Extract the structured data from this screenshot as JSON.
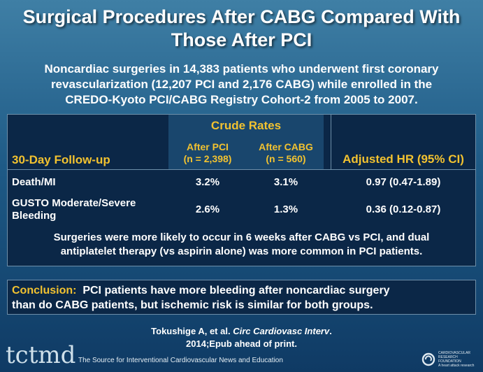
{
  "title": {
    "line1": "Surgical Procedures After CABG Compared With",
    "line2": "Those After PCI"
  },
  "subtitle": {
    "line1": "Noncardiac surgeries in 14,383 patients who underwent first coronary",
    "line2": "revascularization (12,207 PCI and 2,176 CABG) while enrolled in the",
    "line3": "CREDO-Kyoto PCI/CABG Registry Cohort-2 from 2005 to 2007."
  },
  "table": {
    "crude_rates": "Crude Rates",
    "row_header": "30-Day Follow-up",
    "after_pci": {
      "line1": "After PCI",
      "line2": "(n = 2,398)"
    },
    "after_cabg": {
      "line1": "After CABG",
      "line2": "(n = 560)"
    },
    "adjusted_hr": "Adjusted HR (95% CI)",
    "rows": [
      {
        "label1": "Death/MI",
        "label2": "",
        "pci": "3.2%",
        "cabg": "3.1%",
        "hr": "0.97 (0.47-1.89)"
      },
      {
        "label1": "GUSTO Moderate/Severe",
        "label2": "Bleeding",
        "pci": "2.6%",
        "cabg": "1.3%",
        "hr": "0.36 (0.12-0.87)"
      }
    ],
    "note": {
      "line1": "Surgeries were more likely to occur in 6 weeks after CABG vs PCI, and dual",
      "line2": "antiplatelet therapy (vs aspirin alone) was more common in PCI patients."
    }
  },
  "conclusion": {
    "label": "Conclusion:",
    "line1": "PCI patients have more bleeding after noncardiac surgery",
    "line2": "than do CABG patients, but ischemic risk is similar for both groups."
  },
  "citation": {
    "authors": "Tokushige A, et al.",
    "journal": "Circ Cardiovasc Interv",
    "line2": "2014;Epub ahead of print."
  },
  "footer": {
    "logo": "tctmd",
    "tagline": "The Source for Interventional Cardiovascular News and Education",
    "org_line1": "CARDIOVASCULAR",
    "org_line2": "RESEARCH",
    "org_line3": "FOUNDATION",
    "org_line4": "A heart attack research"
  },
  "colors": {
    "accent": "#f2c230",
    "panel": "#0b2747",
    "crude_band": "#19466d"
  }
}
